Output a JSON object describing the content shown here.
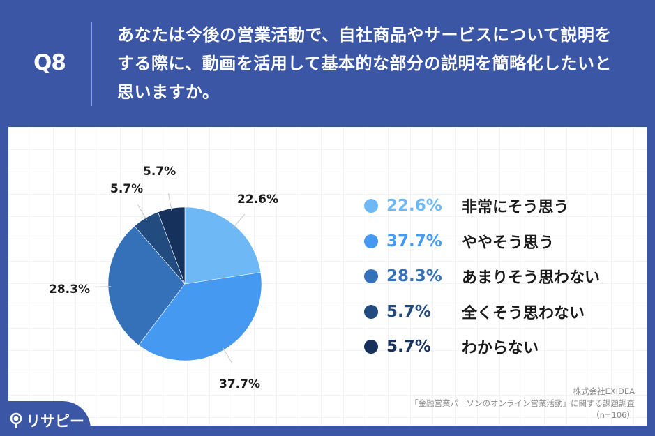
{
  "header": {
    "question_number": "Q8",
    "question_text": "あなたは今後の営業活動で、自社商品やサービスについて説明をする際に、動画を活用して基本的な部分の説明を簡略化したいと思いますか。"
  },
  "legend": [
    {
      "pct": "22.6%",
      "label": "非常にそう思う",
      "color": "#6db8f5"
    },
    {
      "pct": "37.7%",
      "label": "ややそう思う",
      "color": "#4599f0"
    },
    {
      "pct": "28.3%",
      "label": "あまりそう思わない",
      "color": "#3571b9"
    },
    {
      "pct": "5.7%",
      "label": "全くそう思わない",
      "color": "#224b80"
    },
    {
      "pct": "5.7%",
      "label": "わからない",
      "color": "#15315c"
    }
  ],
  "source": {
    "line1": "株式会社EXIDEA",
    "line2": "「金融営業パーソンのオンライン営業活動」に関する課題調査",
    "line3": "（n=106）"
  },
  "logo": {
    "text": "リサピー"
  },
  "chart_data": {
    "type": "pie",
    "title": "あなたは今後の営業活動で、自社商品やサービスについて説明をする際に、動画を活用して基本的な部分の説明を簡略化したいと思いますか。",
    "categories": [
      "非常にそう思う",
      "ややそう思う",
      "あまりそう思わない",
      "全くそう思わない",
      "わからない"
    ],
    "values": [
      22.6,
      37.7,
      28.3,
      5.7,
      5.7
    ],
    "colors": [
      "#6db8f5",
      "#4599f0",
      "#3571b9",
      "#224b80",
      "#15315c"
    ],
    "data_labels": [
      "22.6%",
      "37.7%",
      "28.3%",
      "5.7%",
      "5.7%"
    ],
    "start_angle": "12 o'clock, clockwise",
    "legend_position": "right",
    "n": 106
  }
}
